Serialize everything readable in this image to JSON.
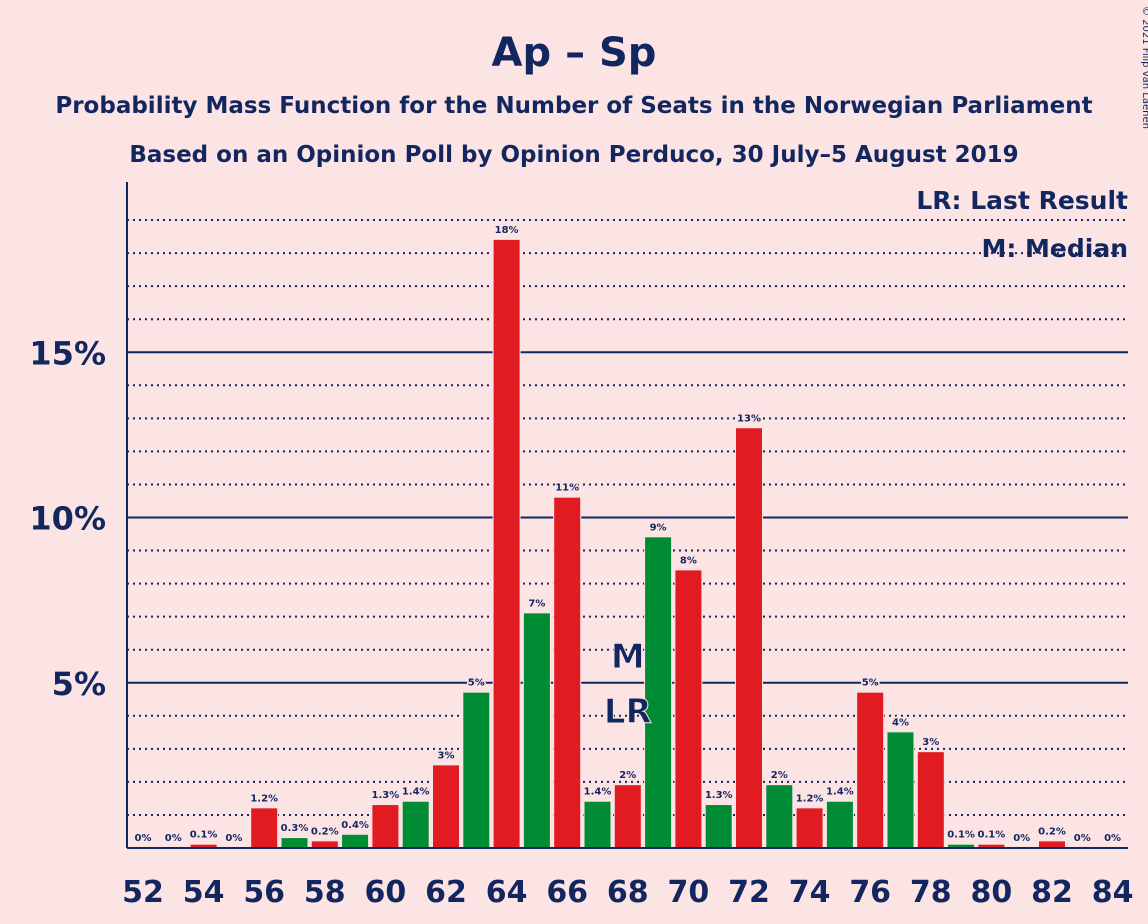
{
  "chart_data": {
    "type": "bar",
    "title": "Ap – Sp",
    "subtitle_line1": "Probability Mass Function for the Number of Seats in the Norwegian Parliament",
    "subtitle_line2": "Based on an Opinion Poll by Opinion Perduco, 30 July–5 August 2019",
    "copyright": "© 2021 Filip van Laenen",
    "x": [
      52,
      53,
      54,
      55,
      56,
      57,
      58,
      59,
      60,
      61,
      62,
      63,
      64,
      65,
      66,
      67,
      68,
      69,
      70,
      71,
      72,
      73,
      74,
      75,
      76,
      77,
      78,
      79,
      80,
      81,
      82,
      83,
      84
    ],
    "values": [
      0.0,
      0.0,
      0.1,
      0.0,
      1.2,
      0.3,
      0.2,
      0.4,
      1.3,
      1.4,
      2.5,
      4.7,
      18.4,
      7.1,
      10.6,
      1.4,
      1.9,
      9.4,
      8.4,
      1.3,
      12.7,
      1.9,
      1.2,
      1.4,
      4.7,
      3.5,
      2.9,
      0.1,
      0.1,
      0.0,
      0.2,
      0.0,
      0.0
    ],
    "value_labels": [
      "0%",
      "0%",
      "0.1%",
      "0%",
      "1.2%",
      "0.3%",
      "0.2%",
      "0.4%",
      "1.3%",
      "1.4%",
      "3%",
      "5%",
      "18%",
      "7%",
      "11%",
      "1.4%",
      "2%",
      "9%",
      "8%",
      "1.3%",
      "13%",
      "2%",
      "1.2%",
      "1.4%",
      "5%",
      "4%",
      "3%",
      "0.1%",
      "0.1%",
      "0%",
      "0.2%",
      "0%",
      "0%"
    ],
    "x_tick_labels": [
      "52",
      "54",
      "56",
      "58",
      "60",
      "62",
      "64",
      "66",
      "68",
      "70",
      "72",
      "74",
      "76",
      "78",
      "80",
      "82",
      "84"
    ],
    "y_ticks": [
      {
        "value": 5,
        "label": "5%"
      },
      {
        "value": 10,
        "label": "10%"
      },
      {
        "value": 15,
        "label": "15%"
      }
    ],
    "ylim": [
      0,
      20
    ],
    "grid": "dotted every 1%, solid at 5% intervals",
    "colors": {
      "even": "#E01B22",
      "odd": "#008C35",
      "text": "#12275F",
      "background": "#FCE4E4"
    },
    "median": {
      "seat": 68,
      "label": "M"
    },
    "last_result": {
      "seat": 68,
      "label": "LR"
    },
    "legend": [
      "LR: Last Result",
      "M: Median"
    ],
    "legend_position": "top-right"
  }
}
